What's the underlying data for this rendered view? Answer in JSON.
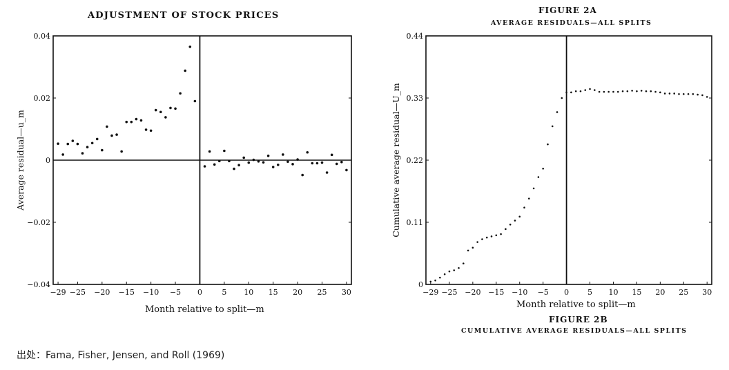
{
  "left_title": "ADJUSTMENT OF STOCK PRICES",
  "right_header": {
    "figure_label": "Figure 2a",
    "caption": "AVERAGE RESIDUALS—ALL SPLITS"
  },
  "right_footer": {
    "figure_label": "Figure 2b",
    "caption": "CUMULATIVE AVERAGE RESIDUALS—ALL SPLITS"
  },
  "source": "出处：Fama, Fisher, Jensen, and Roll (1969)",
  "chart_data": [
    {
      "type": "scatter",
      "title": "ADJUSTMENT OF STOCK PRICES",
      "xlabel": "Month relative to split—m",
      "ylabel": "Average residual—u_m",
      "xlim": [
        -30,
        31
      ],
      "ylim": [
        -0.04,
        0.04
      ],
      "xticks": [
        -29,
        -25,
        -20,
        -15,
        -10,
        -5,
        0,
        5,
        10,
        15,
        20,
        25,
        30
      ],
      "xtick_labels": [
        "−29",
        "−25",
        "−20",
        "−15",
        "−10",
        "−5",
        "0",
        "5",
        "10",
        "15",
        "20",
        "25",
        "30"
      ],
      "yticks": [
        -0.04,
        -0.02,
        0,
        0.02,
        0.04
      ],
      "ytick_labels": [
        "−0.04",
        "−0.02",
        "0",
        "0.02",
        "0.04"
      ],
      "reference_lines": {
        "x": 0,
        "y": 0
      },
      "series": [
        {
          "x": [
            -29,
            -28,
            -27,
            -26,
            -25,
            -24,
            -23,
            -22,
            -21,
            -20,
            -19,
            -18,
            -17,
            -16,
            -15,
            -14,
            -13,
            -12,
            -11,
            -10,
            -9,
            -8,
            -7,
            -6,
            -5,
            -4,
            -3,
            -2,
            -1,
            1,
            2,
            3,
            4,
            5,
            6,
            7,
            8,
            9,
            10,
            11,
            12,
            13,
            14,
            15,
            16,
            17,
            18,
            19,
            20,
            21,
            22,
            23,
            24,
            25,
            26,
            27,
            28,
            29,
            30
          ],
          "y": [
            0.0053,
            0.0018,
            0.0052,
            0.0062,
            0.0052,
            0.0022,
            0.0042,
            0.0055,
            0.0068,
            0.0032,
            0.0108,
            0.0079,
            0.0082,
            0.0028,
            0.0123,
            0.0123,
            0.0132,
            0.0128,
            0.0098,
            0.0095,
            0.0161,
            0.0155,
            0.0138,
            0.0168,
            0.0166,
            0.0215,
            0.0288,
            0.0365,
            0.019,
            -0.002,
            0.0028,
            -0.0014,
            -0.0003,
            0.003,
            -0.0003,
            -0.0028,
            -0.0016,
            0.0008,
            -0.0008,
            0.0001,
            -0.0004,
            -0.0007,
            0.0014,
            -0.0022,
            -0.0015,
            0.0018,
            -0.0005,
            -0.0013,
            0.0002,
            -0.0048,
            0.0025,
            -0.001,
            -0.001,
            -0.0008,
            -0.004,
            0.0017,
            -0.0012,
            -0.0006,
            -0.0032
          ]
        }
      ]
    },
    {
      "type": "scatter",
      "title": "CUMULATIVE AVERAGE RESIDUALS—ALL SPLITS",
      "xlabel": "Month relative to split—m",
      "ylabel": "Cumulative average residual—U_m",
      "xlim": [
        -30,
        31
      ],
      "ylim": [
        0,
        0.44
      ],
      "xticks": [
        -29,
        -25,
        -20,
        -15,
        -10,
        -5,
        0,
        5,
        10,
        15,
        20,
        25,
        30
      ],
      "xtick_labels": [
        "−29",
        "−25",
        "−20",
        "−15",
        "−10",
        "−5",
        "0",
        "5",
        "10",
        "15",
        "20",
        "25",
        "30"
      ],
      "yticks": [
        0,
        0.11,
        0.22,
        0.33,
        0.44
      ],
      "ytick_labels": [
        "0",
        "0.11",
        "0.22",
        "0.33",
        "0.44"
      ],
      "reference_lines": {
        "x": 0
      },
      "series": [
        {
          "x": [
            -29,
            -28,
            -27,
            -26,
            -25,
            -24,
            -23,
            -22,
            -21,
            -20,
            -19,
            -18,
            -17,
            -16,
            -15,
            -14,
            -13,
            -12,
            -11,
            -10,
            -9,
            -8,
            -7,
            -6,
            -5,
            -4,
            -3,
            -2,
            -1,
            0,
            1,
            2,
            3,
            4,
            5,
            6,
            7,
            8,
            9,
            10,
            11,
            12,
            13,
            14,
            15,
            16,
            17,
            18,
            19,
            20,
            21,
            22,
            23,
            24,
            25,
            26,
            27,
            28,
            29,
            30
          ],
          "y": [
            0.005,
            0.007,
            0.012,
            0.018,
            0.023,
            0.025,
            0.029,
            0.037,
            0.06,
            0.065,
            0.075,
            0.08,
            0.083,
            0.085,
            0.087,
            0.089,
            0.098,
            0.106,
            0.113,
            0.12,
            0.136,
            0.152,
            0.17,
            0.19,
            0.205,
            0.248,
            0.28,
            0.305,
            0.33,
            0.34,
            0.34,
            0.342,
            0.342,
            0.344,
            0.346,
            0.344,
            0.341,
            0.341,
            0.341,
            0.341,
            0.341,
            0.342,
            0.342,
            0.343,
            0.342,
            0.343,
            0.342,
            0.342,
            0.341,
            0.34,
            0.338,
            0.338,
            0.338,
            0.337,
            0.337,
            0.337,
            0.337,
            0.336,
            0.335,
            0.332
          ]
        }
      ]
    }
  ]
}
